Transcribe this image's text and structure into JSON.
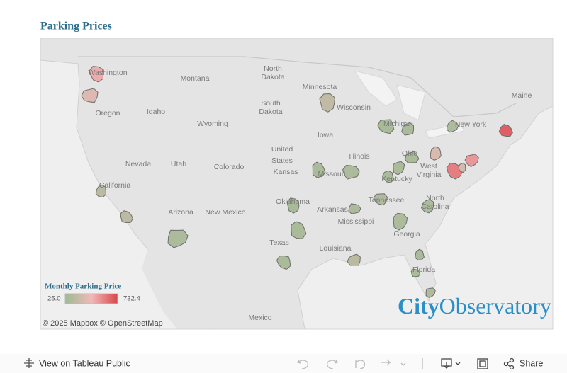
{
  "header": {
    "title": "Parking Prices"
  },
  "map": {
    "labels": [
      {
        "lines": [
          "Washington"
        ]
      },
      {
        "lines": [
          "Montana"
        ]
      },
      {
        "lines": [
          "North",
          "Dakota"
        ]
      },
      {
        "lines": [
          "Minnesota"
        ]
      },
      {
        "lines": [
          "South",
          "Dakota"
        ]
      },
      {
        "lines": [
          "Wisconsin"
        ]
      },
      {
        "lines": [
          "Oregon"
        ]
      },
      {
        "lines": [
          "Idaho"
        ]
      },
      {
        "lines": [
          "Wyoming"
        ]
      },
      {
        "lines": [
          "Michigan"
        ]
      },
      {
        "lines": [
          "New York"
        ]
      },
      {
        "lines": [
          "Maine"
        ]
      },
      {
        "lines": [
          "Iowa"
        ]
      },
      {
        "lines": [
          "United",
          "States"
        ]
      },
      {
        "lines": [
          "Nevada"
        ]
      },
      {
        "lines": [
          "Utah"
        ]
      },
      {
        "lines": [
          "Colorado"
        ]
      },
      {
        "lines": [
          "Kansas"
        ]
      },
      {
        "lines": [
          "Illinois"
        ]
      },
      {
        "lines": [
          "Ohio"
        ]
      },
      {
        "lines": [
          "Missouri"
        ]
      },
      {
        "lines": [
          "Kentucky"
        ]
      },
      {
        "lines": [
          "West",
          "Virginia"
        ]
      },
      {
        "lines": [
          "California"
        ]
      },
      {
        "lines": [
          "Oklahoma"
        ]
      },
      {
        "lines": [
          "Tennessee"
        ]
      },
      {
        "lines": [
          "North",
          "Carolina"
        ]
      },
      {
        "lines": [
          "Arizona"
        ]
      },
      {
        "lines": [
          "New Mexico"
        ]
      },
      {
        "lines": [
          "Arkansas"
        ]
      },
      {
        "lines": [
          "Mississippi"
        ]
      },
      {
        "lines": [
          "Texas"
        ]
      },
      {
        "lines": [
          "Georgia"
        ]
      },
      {
        "lines": [
          "Louisiana"
        ]
      },
      {
        "lines": [
          "Florida"
        ]
      },
      {
        "lines": [
          "Mexico"
        ]
      }
    ],
    "region_values": [
      420,
      300,
      150,
      160,
      90,
      180,
      70,
      80,
      80,
      90,
      80,
      75,
      80,
      280,
      560,
      480,
      250,
      650,
      90,
      70,
      100,
      90,
      80,
      85,
      95,
      85,
      150,
      85,
      80,
      100
    ],
    "copyright": "© 2025 Mapbox © OpenStreetMap"
  },
  "legend": {
    "title": "Monthly Parking Price",
    "min": {
      "value": 25,
      "label": "25.0"
    },
    "max": 732.4,
    "colors": [
      "#9dbb94",
      "#f0b9b9",
      "#d8454a"
    ]
  },
  "logo": {
    "part1": "City",
    "part2": "Observatory"
  },
  "toolbar": {
    "view": "View on Tableau Public",
    "share": "Share"
  }
}
